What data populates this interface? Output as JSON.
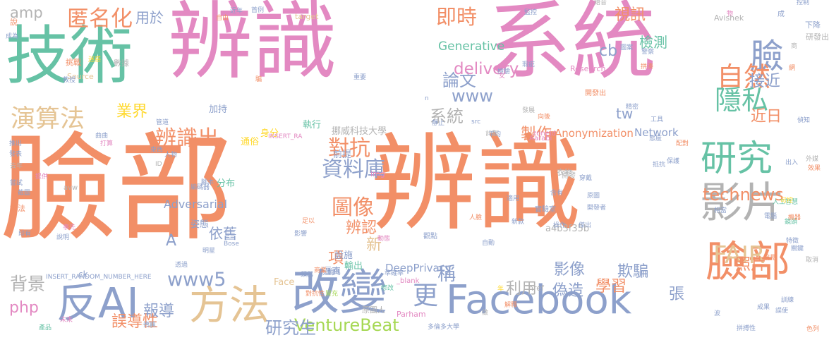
{
  "palette": {
    "orange": "#f28f67",
    "pink": "#e389c2",
    "green": "#66c2a5",
    "blue": "#8da0cb",
    "tan": "#e5c494",
    "lime": "#a6d854",
    "gray": "#b3b3b3",
    "yellow": "#ffd92f"
  },
  "words": [
    {
      "text": "臉部",
      "color": "#f28f67",
      "orientation": "horizontal"
    },
    {
      "text": "辨識",
      "color": "#f28f67",
      "orientation": "horizontal"
    },
    {
      "text": "辨識",
      "color": "#e389c2",
      "orientation": "horizontal"
    },
    {
      "text": "系統",
      "color": "#e389c2",
      "orientation": "horizontal"
    },
    {
      "text": "技術",
      "color": "#66c2a5",
      "orientation": "horizontal"
    },
    {
      "text": "Facebook",
      "color": "#8da0cb",
      "orientation": "horizontal"
    },
    {
      "text": "臉部",
      "color": "#f28f67",
      "orientation": "horizontal"
    },
    {
      "text": "改變",
      "color": "#8da0cb",
      "orientation": "horizontal"
    },
    {
      "text": "方法",
      "color": "#e5c494",
      "orientation": "horizontal"
    },
    {
      "text": "反AI",
      "color": "#8da0cb",
      "orientation": "horizontal"
    },
    {
      "text": "影片",
      "color": "#b3b3b3",
      "orientation": "horizontal"
    },
    {
      "text": "研究",
      "color": "#66c2a5",
      "orientation": "horizontal"
    },
    {
      "text": "臉",
      "color": "#8da0cb",
      "orientation": "horizontal"
    },
    {
      "text": "自然",
      "color": "#f28f67",
      "orientation": "horizontal"
    },
    {
      "text": "隱私",
      "color": "#66c2a5",
      "orientation": "horizontal"
    },
    {
      "text": "更",
      "color": "#8da0cb",
      "orientation": "horizontal"
    },
    {
      "text": "匿名化",
      "color": "#f28f67",
      "orientation": "horizontal"
    },
    {
      "text": "演算法",
      "color": "#e5c494",
      "orientation": "horizontal"
    },
    {
      "text": "即時",
      "color": "#f28f67",
      "orientation": "horizontal"
    },
    {
      "text": "資料庫",
      "color": "#8da0cb",
      "orientation": "horizontal"
    },
    {
      "text": "對抗",
      "color": "#f28f67",
      "orientation": "horizontal"
    },
    {
      "text": "圖像",
      "color": "#f28f67",
      "orientation": "horizontal"
    },
    {
      "text": "辨識出",
      "color": "#f28f67",
      "orientation": "horizontal"
    },
    {
      "text": "FAIR",
      "color": "#e5c494",
      "orientation": "horizontal"
    },
    {
      "text": "www5",
      "color": "#8da0cb",
      "orientation": "horizontal"
    },
    {
      "text": "technews",
      "color": "#f28f67",
      "orientation": "horizontal"
    },
    {
      "text": "論文",
      "color": "#8da0cb",
      "orientation": "horizontal"
    },
    {
      "text": "www",
      "color": "#8da0cb",
      "orientation": "horizontal"
    },
    {
      "text": "系統",
      "color": "#b3b3b3",
      "orientation": "horizontal"
    },
    {
      "text": "接近",
      "color": "#8da0cb",
      "orientation": "horizontal"
    },
    {
      "text": "近日",
      "color": "#f28f67",
      "orientation": "horizontal"
    },
    {
      "text": "業界",
      "color": "#ffd92f",
      "orientation": "horizontal"
    },
    {
      "text": "製作",
      "color": "#f28f67",
      "orientation": "horizontal"
    },
    {
      "text": "delivery",
      "color": "#e389c2",
      "orientation": "horizontal"
    },
    {
      "text": "照片",
      "color": "#f28f67",
      "orientation": "horizontal"
    },
    {
      "text": "學習",
      "color": "#f28f67",
      "orientation": "horizontal"
    },
    {
      "text": "偽造",
      "color": "#8da0cb",
      "orientation": "horizontal"
    },
    {
      "text": "欺騙",
      "color": "#8da0cb",
      "orientation": "horizontal"
    },
    {
      "text": "影像",
      "color": "#8da0cb",
      "orientation": "horizontal"
    },
    {
      "text": "報導",
      "color": "#8da0cb",
      "orientation": "horizontal"
    },
    {
      "text": "誤導性",
      "color": "#f28f67",
      "orientation": "horizontal"
    },
    {
      "text": "VentureBeat",
      "color": "#a6d854",
      "orientation": "horizontal"
    },
    {
      "text": "背景",
      "color": "#b3b3b3",
      "orientation": "horizontal"
    },
    {
      "text": "php",
      "color": "#e389c2",
      "orientation": "horizontal"
    },
    {
      "text": "利用",
      "color": "#b3b3b3",
      "orientation": "horizontal"
    },
    {
      "text": "辨認",
      "color": "#f28f67",
      "orientation": "horizontal"
    },
    {
      "text": "項",
      "color": "#f28f67",
      "orientation": "horizontal"
    },
    {
      "text": "新",
      "color": "#e5c494",
      "orientation": "horizontal"
    },
    {
      "text": "稱",
      "color": "#8da0cb",
      "orientation": "horizontal"
    },
    {
      "text": "挪威科技大學",
      "color": "#b3b3b3",
      "orientation": "horizontal"
    },
    {
      "text": "視訊",
      "color": "#f28f67",
      "orientation": "horizontal"
    },
    {
      "text": "檢測",
      "color": "#66c2a5",
      "orientation": "horizontal"
    },
    {
      "text": "用於",
      "color": "#8da0cb",
      "orientation": "horizontal"
    },
    {
      "text": "amp",
      "color": "#b3b3b3",
      "orientation": "horizontal"
    },
    {
      "text": "cb",
      "color": "#8da0cb",
      "orientation": "horizontal"
    },
    {
      "text": "tw",
      "color": "#8da0cb",
      "orientation": "horizontal"
    },
    {
      "text": "A",
      "color": "#8da0cb",
      "orientation": "horizontal"
    },
    {
      "text": "張",
      "color": "#8da0cb",
      "orientation": "horizontal"
    },
    {
      "text": "依舊",
      "color": "#8da0cb",
      "orientation": "horizontal"
    },
    {
      "text": "Generative",
      "color": "#66c2a5",
      "orientation": "horizontal"
    },
    {
      "text": "Adversarial",
      "color": "#8da0cb",
      "orientation": "horizontal"
    },
    {
      "text": "Network",
      "color": "#8da0cb",
      "orientation": "horizontal"
    },
    {
      "text": "DeepPrivacy",
      "color": "#8da0cb",
      "orientation": "horizontal"
    },
    {
      "text": "Anonymization",
      "color": "#f28f67",
      "orientation": "horizontal"
    },
    {
      "text": "a4b3f35b",
      "color": "#b3b3b3",
      "orientation": "horizontal"
    },
    {
      "text": "分布",
      "color": "#66c2a5",
      "orientation": "horizontal"
    },
    {
      "text": "姿態",
      "color": "#8da0cb",
      "orientation": "horizontal"
    },
    {
      "text": "執行",
      "color": "#66c2a5",
      "orientation": "horizontal"
    },
    {
      "text": "加持",
      "color": "#8da0cb",
      "orientation": "horizontal"
    },
    {
      "text": "通俗",
      "color": "#ffd92f",
      "orientation": "horizontal"
    },
    {
      "text": "身分",
      "color": "#ffd92f",
      "orientation": "horizontal"
    },
    {
      "text": "前提",
      "color": "#8da0cb",
      "orientation": "horizontal"
    },
    {
      "text": "設施",
      "color": "#8da0cb",
      "orientation": "horizontal"
    },
    {
      "text": "輸出",
      "color": "#66c2a5",
      "orientation": "horizontal"
    },
    {
      "text": "逼真",
      "color": "#8da0cb",
      "orientation": "horizontal"
    },
    {
      "text": "Face",
      "color": "#e5c494",
      "orientation": "horizontal"
    },
    {
      "text": "ck",
      "color": "#8da0cb",
      "orientation": "horizontal"
    },
    {
      "text": "說法",
      "color": "#f28f67",
      "orientation": "horizontal"
    },
    {
      "text": "說",
      "color": "#f28f67",
      "orientation": "horizontal"
    },
    {
      "text": "挑戰",
      "color": "#f28f67",
      "orientation": "horizontal"
    },
    {
      "text": "數據",
      "color": "#b3b3b3",
      "orientation": "horizontal"
    },
    {
      "text": "Source",
      "color": "#e5c494",
      "orientation": "horizontal"
    },
    {
      "text": "Research",
      "color": "#e389c2",
      "orientation": "horizontal"
    },
    {
      "text": "target",
      "color": "#e5c494",
      "orientation": "horizontal"
    },
    {
      "text": "Avishek",
      "color": "#b3b3b3",
      "orientation": "horizontal"
    },
    {
      "text": "zoneid",
      "color": "#e389c2",
      "orientation": "horizontal"
    },
    {
      "text": "Aarabi",
      "color": "#e389c2",
      "orientation": "horizontal"
    },
    {
      "text": "Parham",
      "color": "#e389c2",
      "orientation": "horizontal"
    },
    {
      "text": "href",
      "color": "#b3b3b3",
      "orientation": "horizontal"
    },
    {
      "text": "img",
      "color": "#e389c2",
      "orientation": "horizontal"
    },
    {
      "text": "INSERT_RA",
      "color": "#e389c2",
      "orientation": "horizontal"
    },
    {
      "text": "INSERT_RANDOM_NUMBER_HERE",
      "color": "#8da0cb",
      "orientation": "horizontal"
    },
    {
      "text": "_blank",
      "color": "#e389c2",
      "orientation": "horizontal"
    },
    {
      "text": "原圖人",
      "color": "#b3b3b3",
      "orientation": "horizontal"
    },
    {
      "text": "多倫多大學",
      "color": "#8da0cb",
      "orientation": "horizontal"
    },
    {
      "text": "人工智慧",
      "color": "#66c2a5",
      "orientation": "horizontal"
    },
    {
      "text": "實驗室",
      "color": "#8da0cb",
      "orientation": "horizontal"
    },
    {
      "text": "衣物",
      "color": "#b3b3b3",
      "orientation": "horizontal"
    },
    {
      "text": "開發",
      "color": "#b3b3b3",
      "orientation": "horizontal"
    },
    {
      "text": "開發出",
      "color": "#f28f67",
      "orientation": "horizontal"
    },
    {
      "text": "研發出",
      "color": "#b3b3b3",
      "orientation": "horizontal"
    },
    {
      "text": "成",
      "color": "#8da0cb",
      "orientation": "horizontal"
    },
    {
      "text": "下降",
      "color": "#8da0cb",
      "orientation": "horizontal"
    },
    {
      "text": "自由",
      "color": "#f28f67",
      "orientation": "horizontal"
    },
    {
      "text": "近年",
      "color": "#8da0cb",
      "orientation": "horizontal"
    },
    {
      "text": "首例",
      "color": "#8da0cb",
      "orientation": "horizontal"
    },
    {
      "text": "監控",
      "color": "#8da0cb",
      "orientation": "horizontal"
    },
    {
      "text": "控制",
      "color": "#8da0cb",
      "orientation": "horizontal"
    },
    {
      "text": "修改",
      "color": "#66c2a5",
      "orientation": "horizontal"
    },
    {
      "text": "年",
      "color": "#ffd92f",
      "orientation": "horizontal"
    },
    {
      "text": "一手",
      "color": "#b3b3b3",
      "orientation": "horizontal"
    },
    {
      "text": "產品",
      "color": "#66c2a5",
      "orientation": "horizontal"
    },
    {
      "text": "資訊",
      "color": "#8da0cb",
      "orientation": "horizontal"
    },
    {
      "text": "未來",
      "color": "#e389c2",
      "orientation": "horizontal"
    },
    {
      "text": "avw",
      "color": "#b3b3b3",
      "orientation": "horizontal"
    },
    {
      "text": "ID",
      "color": "#b3b3b3",
      "orientation": "horizontal"
    },
    {
      "text": "人物",
      "color": "#8da0cb",
      "orientation": "horizontal"
    },
    {
      "text": "東西",
      "color": "#8da0cb",
      "orientation": "horizontal"
    },
    {
      "text": "觀點",
      "color": "#8da0cb",
      "orientation": "horizontal"
    },
    {
      "text": "人臉",
      "color": "#f28f67",
      "orientation": "horizontal"
    },
    {
      "text": "足以",
      "color": "#f28f67",
      "orientation": "horizontal"
    },
    {
      "text": "影響",
      "color": "#8da0cb",
      "orientation": "horizontal"
    },
    {
      "text": "迷惑",
      "color": "#ffd92f",
      "orientation": "horizontal"
    },
    {
      "text": "鏡頭",
      "color": "#66c2a5",
      "orientation": "horizontal"
    },
    {
      "text": "電腦",
      "color": "#8da0cb",
      "orientation": "horizontal"
    },
    {
      "text": "機器",
      "color": "#f28f67",
      "orientation": "horizontal"
    },
    {
      "text": "特徵",
      "color": "#8da0cb",
      "orientation": "horizontal"
    },
    {
      "text": "說明",
      "color": "#8da0cb",
      "orientation": "horizontal"
    },
    {
      "text": "事先",
      "color": "#e389c2",
      "orientation": "horizontal"
    },
    {
      "text": "印有",
      "color": "#8da0cb",
      "orientation": "horizontal"
    },
    {
      "text": "明星",
      "color": "#8da0cb",
      "orientation": "horizontal"
    },
    {
      "text": "Bose",
      "color": "#8da0cb",
      "orientation": "horizontal"
    },
    {
      "text": "範例",
      "color": "#8da0cb",
      "orientation": "horizontal"
    },
    {
      "text": "商業",
      "color": "#f28f67",
      "orientation": "horizontal"
    },
    {
      "text": "準確率",
      "color": "#8da0cb",
      "orientation": "horizontal"
    },
    {
      "text": "解釋",
      "color": "#f28f67",
      "orientation": "horizontal"
    },
    {
      "text": "偏見",
      "color": "#f28f67",
      "orientation": "horizontal"
    },
    {
      "text": "對抗性",
      "color": "#f28f67",
      "orientation": "horizontal"
    },
    {
      "text": "冒充",
      "color": "#a6d854",
      "orientation": "horizontal"
    },
    {
      "text": "類器",
      "color": "#8da0cb",
      "orientation": "horizontal"
    },
    {
      "text": "透過",
      "color": "#8da0cb",
      "orientation": "horizontal"
    },
    {
      "text": "操作",
      "color": "#8da0cb",
      "orientation": "horizontal"
    },
    {
      "text": "傑出",
      "color": "#8da0cb",
      "orientation": "horizontal"
    },
    {
      "text": "檢驗",
      "color": "#8da0cb",
      "orientation": "horizontal"
    },
    {
      "text": "精密",
      "color": "#8da0cb",
      "orientation": "horizontal"
    },
    {
      "text": "工具",
      "color": "#8da0cb",
      "orientation": "horizontal"
    },
    {
      "text": "平均",
      "color": "#8da0cb",
      "orientation": "horizontal"
    },
    {
      "text": "計劃",
      "color": "#b3b3b3",
      "orientation": "horizontal"
    },
    {
      "text": "靜止",
      "color": "#8da0cb",
      "orientation": "horizontal"
    },
    {
      "text": "發展",
      "color": "#b3b3b3",
      "orientation": "horizontal"
    },
    {
      "text": "去年",
      "color": "#b3b3b3",
      "orientation": "horizontal"
    },
    {
      "text": "提供",
      "color": "#e389c2",
      "orientation": "horizontal"
    },
    {
      "text": "嘗試",
      "color": "#8da0cb",
      "orientation": "horizontal"
    },
    {
      "text": "截圖",
      "color": "#8da0cb",
      "orientation": "horizontal"
    },
    {
      "text": "發表",
      "color": "#8da0cb",
      "orientation": "horizontal"
    },
    {
      "text": "推出",
      "color": "#8da0cb",
      "orientation": "horizontal"
    },
    {
      "text": "曲曲",
      "color": "#8da0cb",
      "orientation": "horizontal"
    },
    {
      "text": "打算",
      "color": "#e389c2",
      "orientation": "horizontal"
    },
    {
      "text": "管道",
      "color": "#8da0cb",
      "orientation": "horizontal"
    },
    {
      "text": "編碼器",
      "color": "#8da0cb",
      "orientation": "horizontal"
    },
    {
      "text": "腳本",
      "color": "#8da0cb",
      "orientation": "horizontal"
    },
    {
      "text": "研究生",
      "color": "#8da0cb",
      "orientation": "horizontal"
    },
    {
      "text": "騙",
      "color": "#f28f67",
      "orientation": "horizontal"
    },
    {
      "text": "重要",
      "color": "#8da0cb",
      "orientation": "horizontal"
    },
    {
      "text": "偵知",
      "color": "#8da0cb",
      "orientation": "horizontal"
    },
    {
      "text": "外媒",
      "color": "#b3b3b3",
      "orientation": "horizontal"
    },
    {
      "text": "效果",
      "color": "#f28f67",
      "orientation": "horizontal"
    },
    {
      "text": "誤使",
      "color": "#8da0cb",
      "orientation": "horizontal"
    },
    {
      "text": "色列",
      "color": "#f28f67",
      "orientation": "horizontal"
    },
    {
      "text": "成果",
      "color": "#8da0cb",
      "orientation": "horizontal"
    },
    {
      "text": "n",
      "color": "#8da0cb",
      "orientation": "horizontal"
    },
    {
      "text": "src",
      "color": "#8da0cb",
      "orientation": "horizontal"
    },
    {
      "text": "女",
      "color": "#e389c2",
      "orientation": "horizontal"
    },
    {
      "text": "瑕疵",
      "color": "#8da0cb",
      "orientation": "horizontal"
    },
    {
      "text": "向後",
      "color": "#f28f67",
      "orientation": "horizontal"
    },
    {
      "text": "教授",
      "color": "#8da0cb",
      "orientation": "horizontal"
    },
    {
      "text": "語音",
      "color": "#b3b3b3",
      "orientation": "horizontal"
    },
    {
      "text": "警察",
      "color": "#8da0cb",
      "orientation": "horizontal"
    },
    {
      "text": "圖案",
      "color": "#8da0cb",
      "orientation": "horizontal"
    },
    {
      "text": "態度",
      "color": "#8da0cb",
      "orientation": "horizontal"
    },
    {
      "text": "配對",
      "color": "#f28f67",
      "orientation": "horizontal"
    },
    {
      "text": "保護",
      "color": "#8da0cb",
      "orientation": "horizontal"
    },
    {
      "text": "出入",
      "color": "#8da0cb",
      "orientation": "horizontal"
    },
    {
      "text": "含有",
      "color": "#8da0cb",
      "orientation": "horizontal"
    },
    {
      "text": "抵抗",
      "color": "#8da0cb",
      "orientation": "horizontal"
    },
    {
      "text": "穿戴",
      "color": "#8da0cb",
      "orientation": "horizontal"
    },
    {
      "text": "原圖",
      "color": "#8da0cb",
      "orientation": "horizontal"
    },
    {
      "text": "適用",
      "color": "#8da0cb",
      "orientation": "horizontal"
    },
    {
      "text": "開發者",
      "color": "#8da0cb",
      "orientation": "horizontal"
    },
    {
      "text": "新款",
      "color": "#8da0cb",
      "orientation": "horizontal"
    },
    {
      "text": "關鍵",
      "color": "#8da0cb",
      "orientation": "horizontal"
    },
    {
      "text": "取消",
      "color": "#b3b3b3",
      "orientation": "horizontal"
    },
    {
      "text": "做",
      "color": "#b3b3b3",
      "orientation": "horizontal"
    },
    {
      "text": "波",
      "color": "#8da0cb",
      "orientation": "horizontal"
    },
    {
      "text": "成為",
      "color": "#8da0cb",
      "orientation": "horizontal"
    },
    {
      "text": "動態",
      "color": "#e389c2",
      "orientation": "horizontal"
    },
    {
      "text": "自動",
      "color": "#8da0cb",
      "orientation": "horizontal"
    },
    {
      "text": "商",
      "color": "#b3b3b3",
      "orientation": "horizontal"
    },
    {
      "text": "物",
      "color": "#e389c2",
      "orientation": "horizontal"
    },
    {
      "text": "網",
      "color": "#f28f67",
      "orientation": "horizontal"
    },
    {
      "text": "拼湊",
      "color": "#f28f67",
      "orientation": "horizontal"
    },
    {
      "text": "可控",
      "color": "#ffd92f",
      "orientation": "horizontal"
    },
    {
      "text": "相當",
      "color": "#8da0cb",
      "orientation": "horizontal"
    },
    {
      "text": "拼搏性",
      "color": "#8da0cb",
      "orientation": "horizontal"
    },
    {
      "text": "訓練",
      "color": "#8da0cb",
      "orientation": "horizontal"
    },
    {
      "text": "照片",
      "color": "#8da0cb",
      "orientation": "horizontal"
    },
    {
      "text": "環境",
      "color": "#f28f67",
      "orientation": "horizontal"
    },
    {
      "text": "加入",
      "color": "#a6d854",
      "orientation": "horizontal"
    },
    {
      "text": "藏匿",
      "color": "#f28f67",
      "orientation": "horizontal"
    }
  ]
}
